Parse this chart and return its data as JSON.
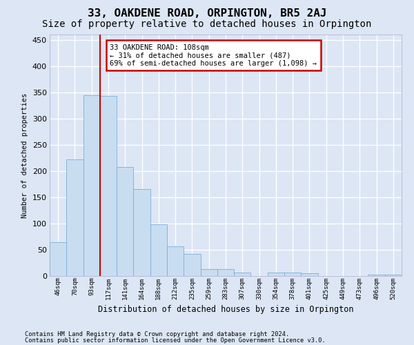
{
  "title": "33, OAKDENE ROAD, ORPINGTON, BR5 2AJ",
  "subtitle": "Size of property relative to detached houses in Orpington",
  "xlabel": "Distribution of detached houses by size in Orpington",
  "ylabel": "Number of detached properties",
  "bins": [
    "46sqm",
    "70sqm",
    "93sqm",
    "117sqm",
    "141sqm",
    "164sqm",
    "188sqm",
    "212sqm",
    "235sqm",
    "259sqm",
    "283sqm",
    "307sqm",
    "330sqm",
    "354sqm",
    "378sqm",
    "401sqm",
    "425sqm",
    "449sqm",
    "473sqm",
    "496sqm",
    "520sqm"
  ],
  "values": [
    65,
    222,
    345,
    343,
    208,
    165,
    99,
    56,
    42,
    13,
    13,
    7,
    0,
    6,
    6,
    5,
    0,
    0,
    0,
    3,
    2
  ],
  "bar_color": "#c9ddf0",
  "bar_edge_color": "#7aaed6",
  "red_line_color": "#cc0000",
  "annotation_text": "33 OAKDENE ROAD: 108sqm\n← 31% of detached houses are smaller (487)\n69% of semi-detached houses are larger (1,098) →",
  "annotation_box_facecolor": "white",
  "annotation_box_edgecolor": "#cc0000",
  "footer1": "Contains HM Land Registry data © Crown copyright and database right 2024.",
  "footer2": "Contains public sector information licensed under the Open Government Licence v3.0.",
  "bg_color": "#dce6f5",
  "plot_bg_color": "#dce6f5",
  "grid_color": "white",
  "title_fontsize": 11.5,
  "subtitle_fontsize": 10,
  "ylim": [
    0,
    460
  ],
  "yticks": [
    0,
    50,
    100,
    150,
    200,
    250,
    300,
    350,
    400,
    450
  ]
}
